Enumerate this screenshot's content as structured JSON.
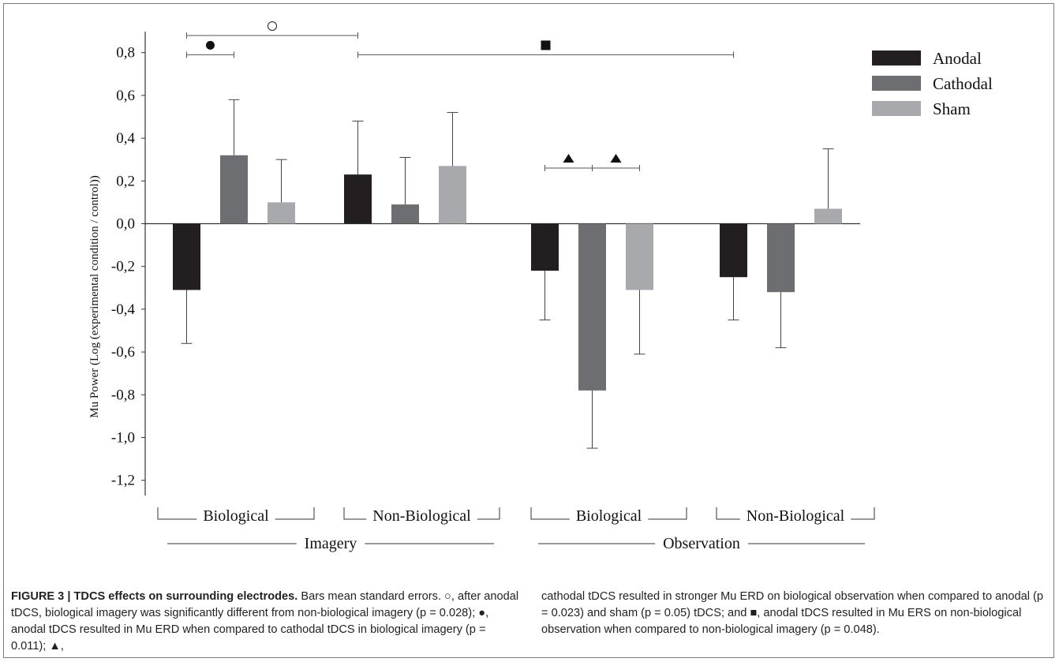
{
  "chart_data": {
    "type": "bar",
    "ylabel": "Mu Power (Log (experimental condition / control))",
    "ylim": [
      -1.2,
      0.8
    ],
    "yticks": [
      0.8,
      0.6,
      0.4,
      0.2,
      0.0,
      -0.2,
      -0.4,
      -0.6,
      -0.8,
      -1.0,
      -1.2
    ],
    "ytick_labels": [
      "0,8",
      "0,6",
      "0,4",
      "0,2",
      "0,0",
      "-0,2",
      "-0,4",
      "-0,6",
      "-0,8",
      "-1,0",
      "-1,2"
    ],
    "categories": [
      "Biological",
      "Non-Biological",
      "Biological",
      "Non-Biological"
    ],
    "supergroups": [
      {
        "label": "Imagery",
        "categories": [
          0,
          1
        ]
      },
      {
        "label": "Observation",
        "categories": [
          2,
          3
        ]
      }
    ],
    "legend_position": "top-right",
    "series": [
      {
        "name": "Anodal",
        "color": "#231f20",
        "values": [
          -0.31,
          0.23,
          -0.22,
          -0.25
        ],
        "errors": [
          0.25,
          0.25,
          0.23,
          0.2
        ]
      },
      {
        "name": "Cathodal",
        "color": "#6d6e71",
        "values": [
          0.32,
          0.09,
          -0.78,
          -0.32
        ],
        "errors": [
          0.26,
          0.22,
          0.27,
          0.26
        ]
      },
      {
        "name": "Sham",
        "color": "#a7a9ac",
        "values": [
          0.1,
          0.27,
          -0.31,
          0.07
        ],
        "errors": [
          0.2,
          0.25,
          0.3,
          0.28
        ]
      }
    ],
    "annotations": [
      {
        "symbol": "○",
        "shape": "open-circle",
        "from": [
          0,
          0
        ],
        "to": [
          1,
          0
        ],
        "level": 0.88
      },
      {
        "symbol": "●",
        "shape": "filled-circle",
        "from": [
          0,
          0
        ],
        "to": [
          0,
          1
        ],
        "level": 0.79
      },
      {
        "symbol": "■",
        "shape": "filled-square",
        "from": [
          1,
          0
        ],
        "to": [
          3,
          0
        ],
        "level": 0.79
      },
      {
        "symbol": "▲",
        "shape": "filled-triangle",
        "from": [
          2,
          0
        ],
        "to": [
          2,
          1
        ],
        "level": 0.26
      },
      {
        "symbol": "▲",
        "shape": "filled-triangle",
        "from": [
          2,
          1
        ],
        "to": [
          2,
          2
        ],
        "level": 0.26
      }
    ]
  },
  "caption": {
    "label": "FIGURE 3 | TDCS effects on surrounding electrodes.",
    "body_left": " Bars mean standard errors. ○, after anodal tDCS, biological imagery was significantly different from non-biological imagery (p = 0.028); ●, anodal tDCS resulted in Mu ERD when compared to cathodal tDCS in biological imagery (p = 0.011); ▲,",
    "body_right": "cathodal tDCS resulted in stronger Mu ERD on biological observation when compared to anodal (p = 0.023) and sham (p = 0.05) tDCS; and ■, anodal tDCS resulted in Mu ERS on non-biological observation when compared to non-biological imagery (p = 0.048)."
  }
}
